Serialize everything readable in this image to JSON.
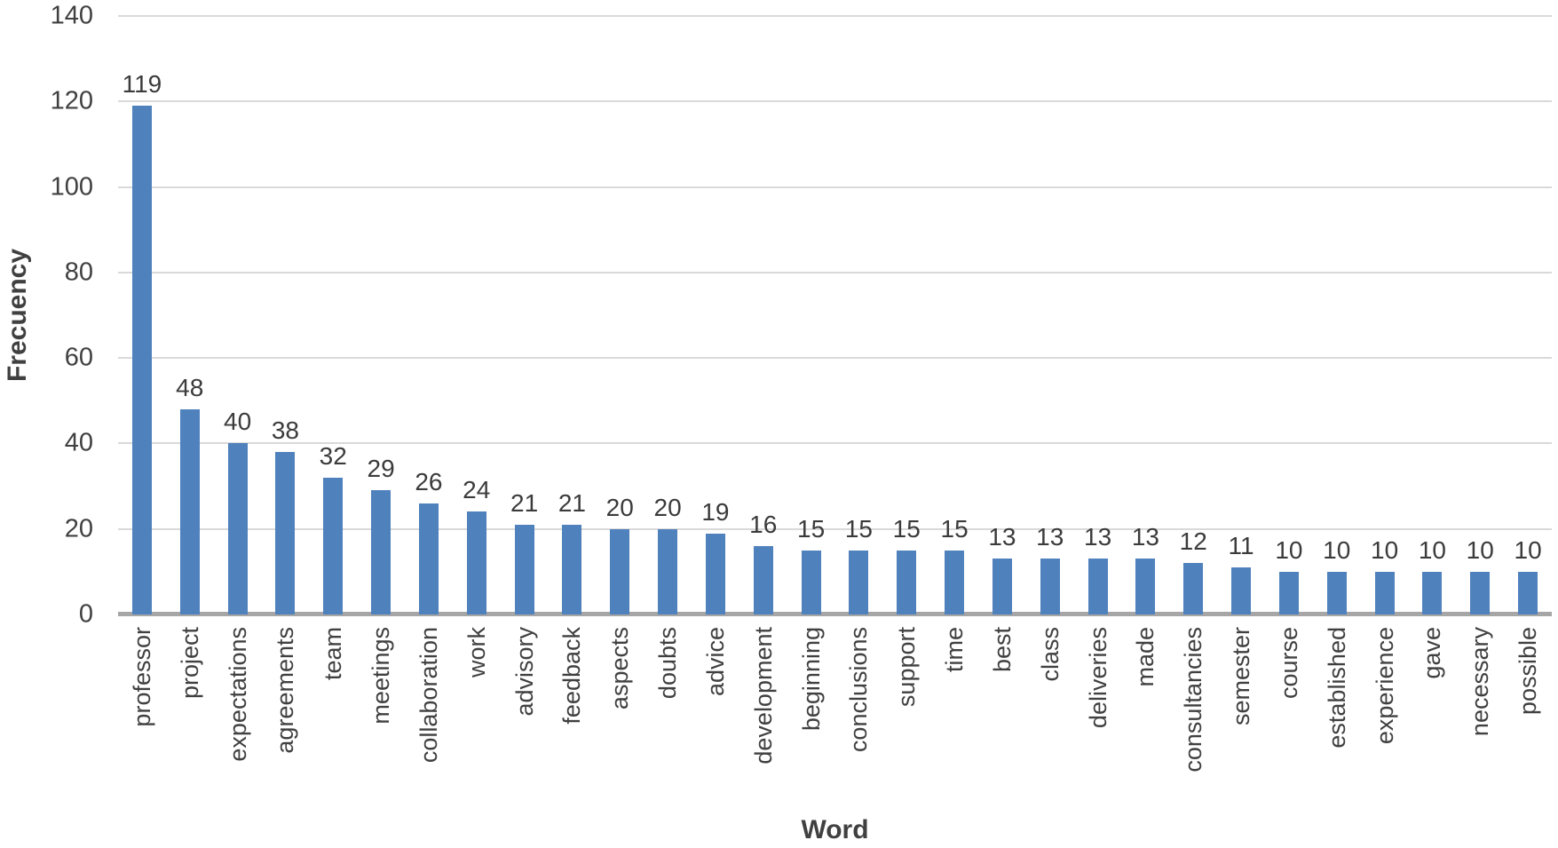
{
  "chart_data": {
    "type": "bar",
    "title": "",
    "xlabel": "Word",
    "ylabel": "Frecuency",
    "categories": [
      "professor",
      "project",
      "expectations",
      "agreements",
      "team",
      "meetings",
      "collaboration",
      "work",
      "advisory",
      "feedback",
      "aspects",
      "doubts",
      "advice",
      "development",
      "beginning",
      "conclusions",
      "support",
      "time",
      "best",
      "class",
      "deliveries",
      "made",
      "consultancies",
      "semester",
      "course",
      "established",
      "experience",
      "gave",
      "necessary",
      "possible"
    ],
    "values": [
      119,
      48,
      40,
      38,
      32,
      29,
      26,
      24,
      21,
      21,
      20,
      20,
      19,
      16,
      15,
      15,
      15,
      15,
      13,
      13,
      13,
      13,
      12,
      11,
      10,
      10,
      10,
      10,
      10,
      10
    ],
    "data_labels": true,
    "ylim": [
      0,
      140
    ],
    "yticks": [
      0,
      20,
      40,
      60,
      80,
      100,
      120,
      140
    ],
    "grid": true,
    "legend": false,
    "colors": {
      "bar": "#4f81bd",
      "gridline": "#d9d9d9",
      "axis_line": "#a6a6a6",
      "text": "#404040"
    }
  }
}
